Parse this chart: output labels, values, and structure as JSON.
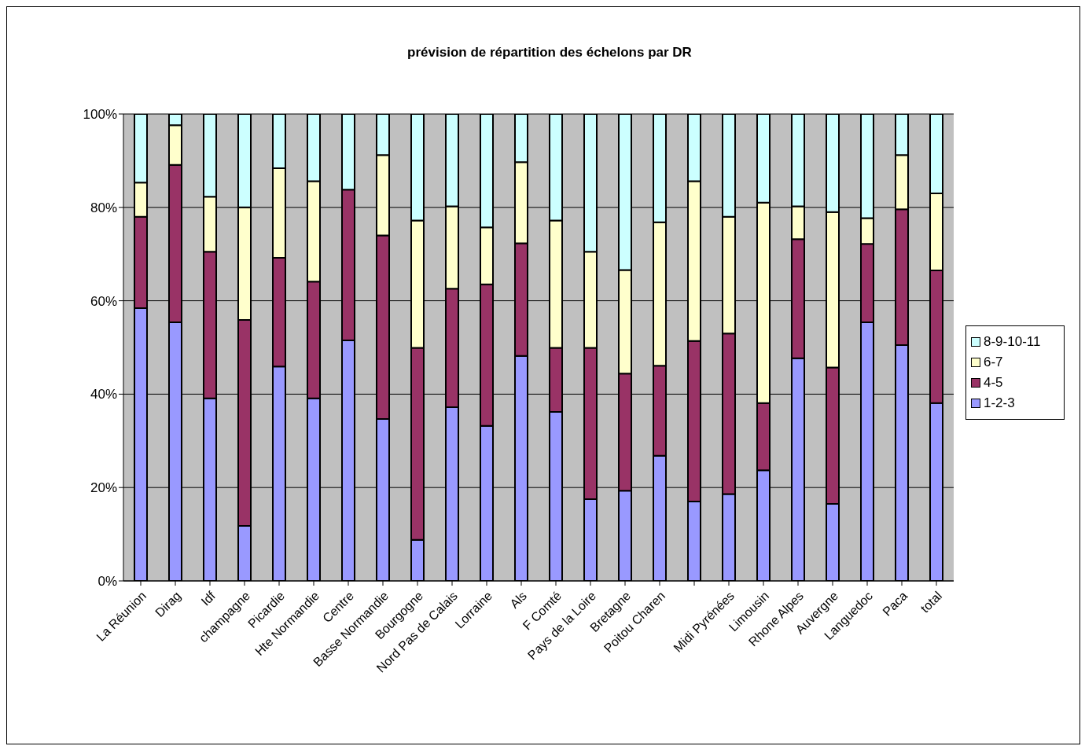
{
  "chart_data": {
    "type": "bar",
    "stacked": true,
    "title": "prévision de répartition des échelons par DR",
    "categories": [
      "La Réunion",
      "Dirag",
      "Idf",
      "champagne",
      "Picardie",
      "Hte Normandie",
      "Centre",
      "Basse Normandie",
      "Bourgogne",
      "Nord Pas de Calais",
      "Lorraine",
      "Als",
      "F Comté",
      "Pays de la Loire",
      "Bretagne",
      "Poitou Charen",
      null,
      "Midi Pyrénées",
      "Limousin",
      "Rhone Alpes",
      "Auvergne",
      "Languedoc",
      "Paca",
      "total"
    ],
    "series": [
      {
        "name": "1-2-3",
        "color": "#9999ff",
        "values": [
          58.4,
          55.4,
          39.1,
          11.8,
          45.9,
          39.1,
          51.5,
          34.7,
          8.8,
          37.2,
          33.2,
          48.2,
          36.2,
          17.5,
          19.3,
          26.8,
          17.0,
          18.6,
          23.7,
          47.7,
          16.5,
          55.4,
          50.5,
          38.1
        ]
      },
      {
        "name": "4-5",
        "color": "#993366",
        "values": [
          19.6,
          33.7,
          31.4,
          44.1,
          23.3,
          25.0,
          32.3,
          39.3,
          41.1,
          25.4,
          30.3,
          24.1,
          13.7,
          32.4,
          25.1,
          19.3,
          34.4,
          34.4,
          14.4,
          25.5,
          29.2,
          16.8,
          29.1,
          28.4
        ]
      },
      {
        "name": "6-7",
        "color": "#ffffcc",
        "values": [
          7.3,
          8.5,
          11.8,
          24.1,
          19.2,
          21.5,
          0,
          17.2,
          27.3,
          17.6,
          12.2,
          17.4,
          27.3,
          20.6,
          22.2,
          30.7,
          34.2,
          25.0,
          42.9,
          7.0,
          33.3,
          5.5,
          11.6,
          16.5
        ]
      },
      {
        "name": "8-9-10-11",
        "color": "#ccffff",
        "values": [
          14.7,
          2.4,
          17.7,
          20.0,
          11.6,
          14.4,
          16.2,
          8.8,
          22.8,
          19.8,
          24.3,
          10.3,
          22.8,
          29.5,
          33.4,
          23.2,
          14.4,
          22.0,
          19.0,
          19.8,
          21.0,
          22.3,
          8.8,
          17.0
        ]
      }
    ],
    "ylim": [
      0,
      100
    ],
    "yticks": [
      {
        "value": 0,
        "label": "0%"
      },
      {
        "value": 20,
        "label": "20%"
      },
      {
        "value": 40,
        "label": "40%"
      },
      {
        "value": 60,
        "label": "60%"
      },
      {
        "value": 80,
        "label": "80%"
      },
      {
        "value": 100,
        "label": "100%"
      }
    ],
    "grid": "y",
    "legend": "right"
  }
}
